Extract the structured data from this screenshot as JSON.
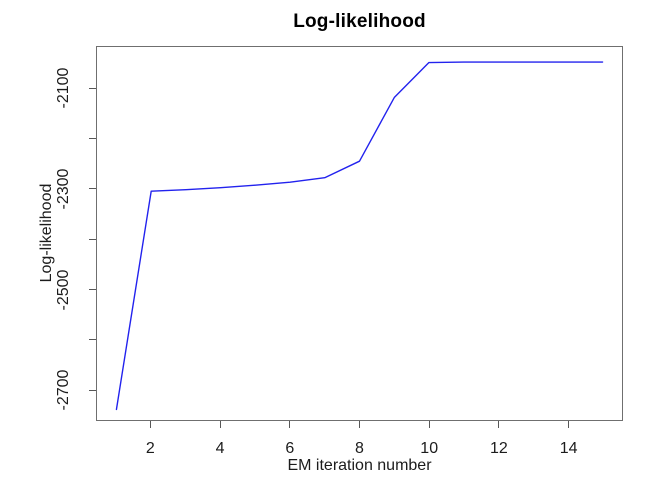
{
  "chart_data": {
    "type": "line",
    "title": "Log-likelihood",
    "xlabel": "EM iteration number",
    "ylabel": "Log-likelihood",
    "x": [
      1,
      2,
      3,
      4,
      5,
      6,
      7,
      8,
      9,
      10,
      11,
      12,
      13,
      14,
      15
    ],
    "series": [
      {
        "name": "Log-likelihood",
        "color": "#2222ee",
        "values": [
          -2740,
          -2304,
          -2301,
          -2297,
          -2292,
          -2286,
          -2277,
          -2244,
          -2117,
          -2047,
          -2046,
          -2046,
          -2046,
          -2046,
          -2046
        ]
      }
    ],
    "xlim": [
      0.44,
      15.56
    ],
    "ylim": [
      -2761,
      -2016
    ],
    "x_ticks": [
      {
        "value": 2,
        "label": "2"
      },
      {
        "value": 4,
        "label": "4"
      },
      {
        "value": 6,
        "label": "6"
      },
      {
        "value": 8,
        "label": "8"
      },
      {
        "value": 10,
        "label": "10"
      },
      {
        "value": 12,
        "label": "12"
      },
      {
        "value": 14,
        "label": "14"
      }
    ],
    "y_ticks": [
      {
        "value": -2700,
        "label": "-2700"
      },
      {
        "value": -2600,
        "label": ""
      },
      {
        "value": -2500,
        "label": "-2500"
      },
      {
        "value": -2400,
        "label": ""
      },
      {
        "value": -2300,
        "label": "-2300"
      },
      {
        "value": -2200,
        "label": ""
      },
      {
        "value": -2100,
        "label": "-2100"
      }
    ],
    "grid": false,
    "legend_position": "none"
  },
  "colors": {
    "line": "#2222ee",
    "box_border": "#6f6f6f",
    "tick": "#575757",
    "text": "#1c1c1c",
    "title": "#000000",
    "background": "#ffffff"
  }
}
